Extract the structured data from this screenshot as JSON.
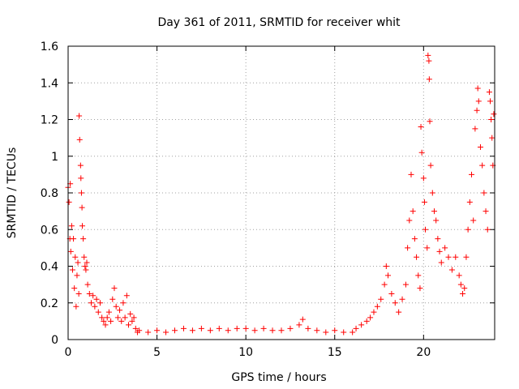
{
  "chart_data": {
    "type": "scatter",
    "title": "Day 361 of 2011, SRMTID for receiver whit",
    "xlabel": "GPS time / hours",
    "ylabel": "SRMTID / TECUs",
    "xlim": [
      0,
      24
    ],
    "ylim": [
      0,
      1.6
    ],
    "xticks": [
      0,
      5,
      10,
      15,
      20
    ],
    "yticks": [
      0,
      0.2,
      0.4,
      0.6,
      0.8,
      1,
      1.2,
      1.4,
      1.6
    ],
    "xtick_labels": [
      "0",
      "5",
      "10",
      "15",
      "20"
    ],
    "ytick_labels": [
      "0",
      "0.2",
      "0.4",
      "0.6",
      "0.8",
      "1",
      "1.2",
      "1.4",
      "1.6"
    ],
    "grid": true,
    "marker": "+",
    "color": "#ff0000",
    "series": [
      {
        "name": "SRMTID",
        "points": [
          [
            0.0,
            0.83
          ],
          [
            0.05,
            0.75
          ],
          [
            0.1,
            0.55
          ],
          [
            0.12,
            0.85
          ],
          [
            0.15,
            0.48
          ],
          [
            0.2,
            0.62
          ],
          [
            0.25,
            0.38
          ],
          [
            0.3,
            0.55
          ],
          [
            0.35,
            0.28
          ],
          [
            0.4,
            0.45
          ],
          [
            0.45,
            0.18
          ],
          [
            0.5,
            0.35
          ],
          [
            0.55,
            0.42
          ],
          [
            0.6,
            0.25
          ],
          [
            0.62,
            1.22
          ],
          [
            0.65,
            1.09
          ],
          [
            0.7,
            0.95
          ],
          [
            0.72,
            0.88
          ],
          [
            0.75,
            0.8
          ],
          [
            0.78,
            0.72
          ],
          [
            0.8,
            0.62
          ],
          [
            0.85,
            0.55
          ],
          [
            0.9,
            0.45
          ],
          [
            0.95,
            0.4
          ],
          [
            1.0,
            0.38
          ],
          [
            1.05,
            0.42
          ],
          [
            1.1,
            0.3
          ],
          [
            1.2,
            0.25
          ],
          [
            1.3,
            0.2
          ],
          [
            1.4,
            0.24
          ],
          [
            1.5,
            0.18
          ],
          [
            1.6,
            0.22
          ],
          [
            1.7,
            0.15
          ],
          [
            1.8,
            0.2
          ],
          [
            1.9,
            0.12
          ],
          [
            2.0,
            0.1
          ],
          [
            2.1,
            0.08
          ],
          [
            2.2,
            0.12
          ],
          [
            2.3,
            0.15
          ],
          [
            2.4,
            0.1
          ],
          [
            2.5,
            0.22
          ],
          [
            2.6,
            0.28
          ],
          [
            2.7,
            0.18
          ],
          [
            2.8,
            0.12
          ],
          [
            2.9,
            0.16
          ],
          [
            3.0,
            0.1
          ],
          [
            3.1,
            0.2
          ],
          [
            3.2,
            0.12
          ],
          [
            3.3,
            0.24
          ],
          [
            3.4,
            0.08
          ],
          [
            3.5,
            0.14
          ],
          [
            3.6,
            0.1
          ],
          [
            3.7,
            0.12
          ],
          [
            3.8,
            0.06
          ],
          [
            3.9,
            0.04
          ],
          [
            4.0,
            0.05
          ],
          [
            4.5,
            0.04
          ],
          [
            5.0,
            0.05
          ],
          [
            5.5,
            0.04
          ],
          [
            6.0,
            0.05
          ],
          [
            6.5,
            0.06
          ],
          [
            7.0,
            0.05
          ],
          [
            7.5,
            0.06
          ],
          [
            8.0,
            0.05
          ],
          [
            8.5,
            0.06
          ],
          [
            9.0,
            0.05
          ],
          [
            9.5,
            0.06
          ],
          [
            10.0,
            0.06
          ],
          [
            10.5,
            0.05
          ],
          [
            11.0,
            0.06
          ],
          [
            11.5,
            0.05
          ],
          [
            12.0,
            0.05
          ],
          [
            12.5,
            0.06
          ],
          [
            13.0,
            0.08
          ],
          [
            13.2,
            0.11
          ],
          [
            13.5,
            0.06
          ],
          [
            14.0,
            0.05
          ],
          [
            14.5,
            0.04
          ],
          [
            15.0,
            0.05
          ],
          [
            15.5,
            0.04
          ],
          [
            16.0,
            0.04
          ],
          [
            16.2,
            0.06
          ],
          [
            16.5,
            0.08
          ],
          [
            16.8,
            0.1
          ],
          [
            17.0,
            0.12
          ],
          [
            17.2,
            0.15
          ],
          [
            17.4,
            0.18
          ],
          [
            17.6,
            0.22
          ],
          [
            17.8,
            0.3
          ],
          [
            17.9,
            0.4
          ],
          [
            18.0,
            0.35
          ],
          [
            18.2,
            0.25
          ],
          [
            18.4,
            0.2
          ],
          [
            18.6,
            0.15
          ],
          [
            18.8,
            0.22
          ],
          [
            19.0,
            0.3
          ],
          [
            19.1,
            0.5
          ],
          [
            19.2,
            0.65
          ],
          [
            19.3,
            0.9
          ],
          [
            19.4,
            0.7
          ],
          [
            19.5,
            0.55
          ],
          [
            19.6,
            0.45
          ],
          [
            19.7,
            0.35
          ],
          [
            19.8,
            0.28
          ],
          [
            19.85,
            1.16
          ],
          [
            19.9,
            1.02
          ],
          [
            20.0,
            0.88
          ],
          [
            20.05,
            0.75
          ],
          [
            20.1,
            0.6
          ],
          [
            20.2,
            0.5
          ],
          [
            20.25,
            1.55
          ],
          [
            20.3,
            1.52
          ],
          [
            20.32,
            1.42
          ],
          [
            20.35,
            1.19
          ],
          [
            20.4,
            0.95
          ],
          [
            20.5,
            0.8
          ],
          [
            20.6,
            0.7
          ],
          [
            20.7,
            0.65
          ],
          [
            20.8,
            0.55
          ],
          [
            20.9,
            0.48
          ],
          [
            21.0,
            0.42
          ],
          [
            21.2,
            0.5
          ],
          [
            21.4,
            0.45
          ],
          [
            21.6,
            0.38
          ],
          [
            21.8,
            0.45
          ],
          [
            22.0,
            0.35
          ],
          [
            22.1,
            0.3
          ],
          [
            22.2,
            0.25
          ],
          [
            22.3,
            0.28
          ],
          [
            22.4,
            0.45
          ],
          [
            22.5,
            0.6
          ],
          [
            22.6,
            0.75
          ],
          [
            22.7,
            0.9
          ],
          [
            22.8,
            0.65
          ],
          [
            22.9,
            1.15
          ],
          [
            23.0,
            1.25
          ],
          [
            23.05,
            1.37
          ],
          [
            23.1,
            1.3
          ],
          [
            23.2,
            1.05
          ],
          [
            23.3,
            0.95
          ],
          [
            23.4,
            0.8
          ],
          [
            23.5,
            0.7
          ],
          [
            23.6,
            0.6
          ],
          [
            23.7,
            1.35
          ],
          [
            23.75,
            1.3
          ],
          [
            23.8,
            1.2
          ],
          [
            23.85,
            1.1
          ],
          [
            23.9,
            0.95
          ],
          [
            23.95,
            1.23
          ]
        ]
      }
    ]
  }
}
